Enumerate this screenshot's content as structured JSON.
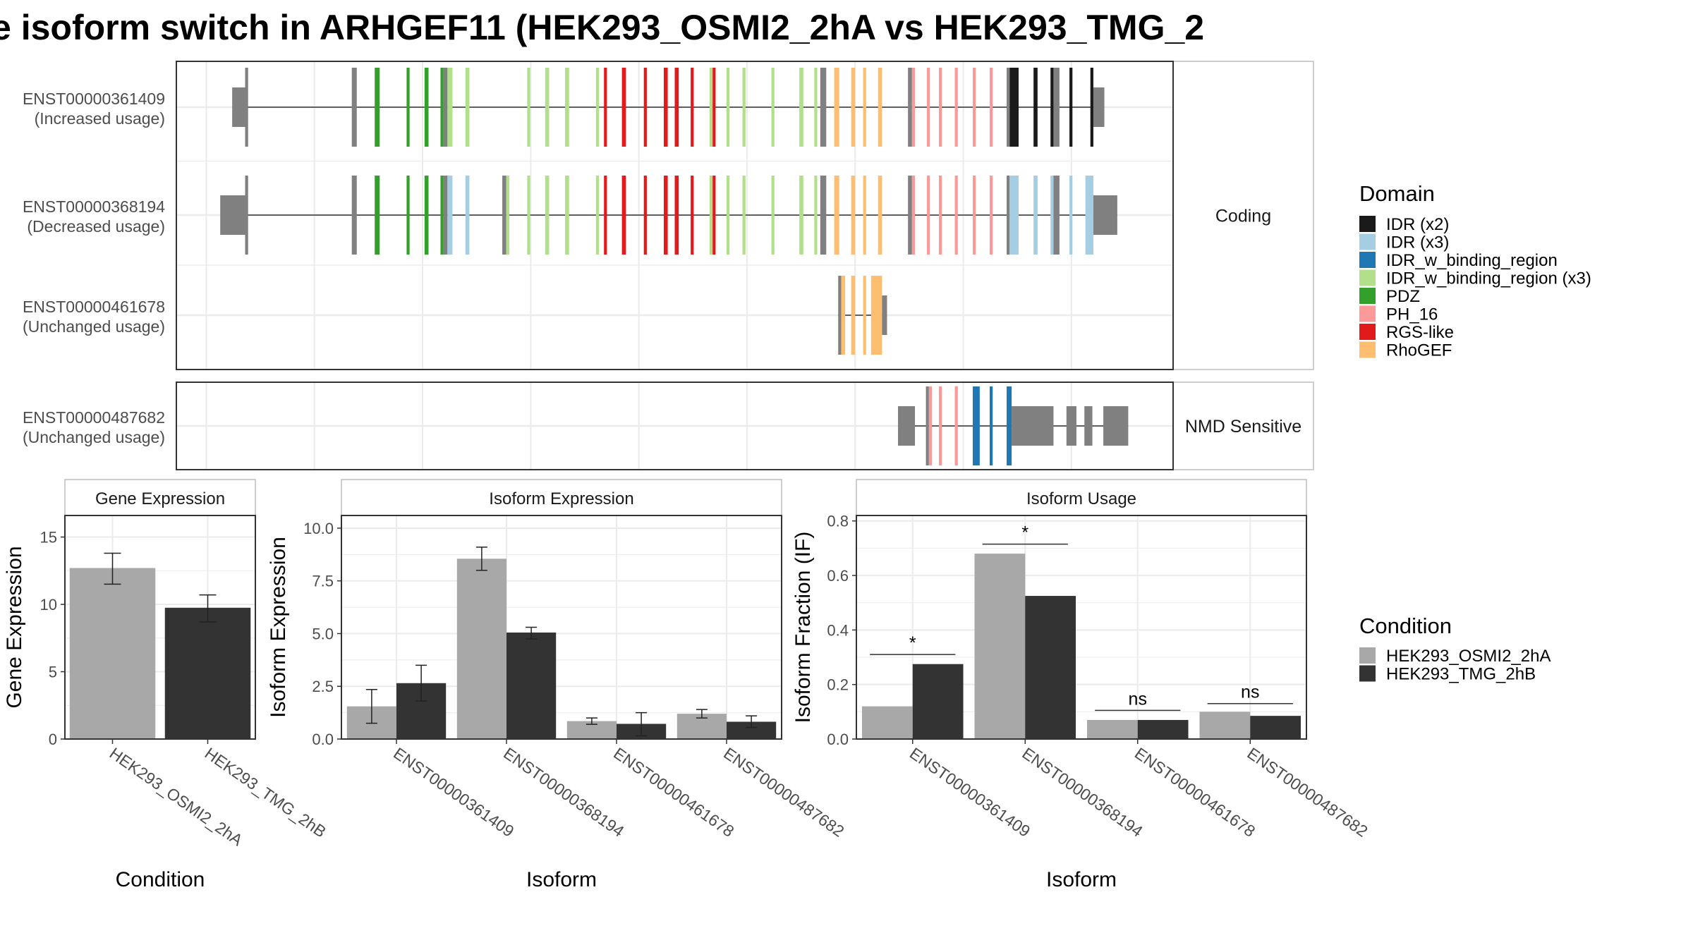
{
  "title": "e isoform switch in ARHGEF11 (HEK293_OSMI2_2hA vs HEK293_TMG_2",
  "colors": {
    "cond_a": "#a8a8a8",
    "cond_b": "#333333",
    "noncoding": "#808080",
    "domains": {
      "IDR (x2)": "#1a1a1a",
      "IDR (x3)": "#a6cee3",
      "IDR_w_binding_region": "#1f78b4",
      "IDR_w_binding_region (x3)": "#b2df8a",
      "PDZ": "#33a02c",
      "PH_16": "#fb9a99",
      "RGS-like": "#e31a1c",
      "RhoGEF": "#fdbf6f"
    }
  },
  "structure": {
    "panels": [
      {
        "strip": "Coding",
        "isoforms": [
          {
            "id": "ENST00000361409",
            "usage": "(Increased usage)"
          },
          {
            "id": "ENST00000368194",
            "usage": "(Decreased usage)"
          },
          {
            "id": "ENST00000461678",
            "usage": "(Unchanged usage)"
          }
        ]
      },
      {
        "strip": "NMD Sensitive",
        "isoforms": [
          {
            "id": "ENST00000487682",
            "usage": "(Unchanged usage)"
          }
        ]
      }
    ],
    "exons": {
      "ENST00000361409": [
        [
          0.056,
          0.069,
          "utr"
        ],
        [
          0.069,
          0.072,
          "nc"
        ],
        [
          0.176,
          0.181,
          "nc"
        ],
        [
          0.199,
          0.204,
          "PDZ"
        ],
        [
          0.231,
          0.234,
          "PDZ"
        ],
        [
          0.249,
          0.253,
          "PDZ"
        ],
        [
          0.265,
          0.268,
          "PDZ"
        ],
        [
          0.268,
          0.272,
          "nc"
        ],
        [
          0.272,
          0.277,
          "IDR_w_binding_region (x3)"
        ],
        [
          0.29,
          0.294,
          "IDR_w_binding_region (x3)"
        ],
        [
          0.352,
          0.355,
          "IDR_w_binding_region (x3)"
        ],
        [
          0.37,
          0.374,
          "IDR_w_binding_region (x3)"
        ],
        [
          0.39,
          0.394,
          "IDR_w_binding_region (x3)"
        ],
        [
          0.421,
          0.424,
          "IDR_w_binding_region (x3)"
        ],
        [
          0.429,
          0.432,
          "RGS-like"
        ],
        [
          0.447,
          0.451,
          "RGS-like"
        ],
        [
          0.469,
          0.472,
          "RGS-like"
        ],
        [
          0.489,
          0.493,
          "RGS-like"
        ],
        [
          0.5,
          0.504,
          "RGS-like"
        ],
        [
          0.516,
          0.519,
          "RGS-like"
        ],
        [
          0.535,
          0.538,
          "IDR_w_binding_region (x3)"
        ],
        [
          0.538,
          0.541,
          "RGS-like"
        ],
        [
          0.552,
          0.555,
          "IDR_w_binding_region (x3)"
        ],
        [
          0.568,
          0.571,
          "IDR_w_binding_region (x3)"
        ],
        [
          0.597,
          0.6,
          "IDR_w_binding_region (x3)"
        ],
        [
          0.625,
          0.629,
          "IDR_w_binding_region (x3)"
        ],
        [
          0.64,
          0.643,
          "IDR_w_binding_region (x3)"
        ],
        [
          0.646,
          0.652,
          "nc"
        ],
        [
          0.66,
          0.665,
          "RhoGEF"
        ],
        [
          0.677,
          0.681,
          "RhoGEF"
        ],
        [
          0.689,
          0.692,
          "RhoGEF"
        ],
        [
          0.704,
          0.708,
          "RhoGEF"
        ],
        [
          0.734,
          0.738,
          "nc"
        ],
        [
          0.738,
          0.741,
          "PH_16"
        ],
        [
          0.753,
          0.756,
          "PH_16"
        ],
        [
          0.765,
          0.768,
          "PH_16"
        ],
        [
          0.781,
          0.784,
          "PH_16"
        ],
        [
          0.799,
          0.802,
          "PH_16"
        ],
        [
          0.816,
          0.819,
          "PH_16"
        ],
        [
          0.833,
          0.836,
          "nc"
        ],
        [
          0.836,
          0.845,
          "IDR (x2)"
        ],
        [
          0.86,
          0.864,
          "IDR (x2)"
        ],
        [
          0.877,
          0.88,
          "IDR (x2)"
        ],
        [
          0.88,
          0.886,
          "nc"
        ],
        [
          0.896,
          0.899,
          "IDR (x2)"
        ],
        [
          0.917,
          0.92,
          "IDR (x2)"
        ],
        [
          0.92,
          0.931,
          "utr"
        ]
      ],
      "ENST00000368194": [
        [
          0.044,
          0.069,
          "utr"
        ],
        [
          0.069,
          0.072,
          "nc"
        ],
        [
          0.176,
          0.181,
          "nc"
        ],
        [
          0.199,
          0.204,
          "PDZ"
        ],
        [
          0.231,
          0.234,
          "PDZ"
        ],
        [
          0.249,
          0.253,
          "PDZ"
        ],
        [
          0.265,
          0.268,
          "PDZ"
        ],
        [
          0.268,
          0.272,
          "nc"
        ],
        [
          0.272,
          0.277,
          "IDR (x3)"
        ],
        [
          0.29,
          0.294,
          "IDR (x3)"
        ],
        [
          0.327,
          0.331,
          "nc"
        ],
        [
          0.331,
          0.334,
          "IDR_w_binding_region (x3)"
        ],
        [
          0.352,
          0.355,
          "IDR_w_binding_region (x3)"
        ],
        [
          0.37,
          0.374,
          "IDR_w_binding_region (x3)"
        ],
        [
          0.39,
          0.394,
          "IDR_w_binding_region (x3)"
        ],
        [
          0.421,
          0.424,
          "IDR_w_binding_region (x3)"
        ],
        [
          0.429,
          0.432,
          "RGS-like"
        ],
        [
          0.447,
          0.451,
          "RGS-like"
        ],
        [
          0.469,
          0.472,
          "RGS-like"
        ],
        [
          0.489,
          0.493,
          "RGS-like"
        ],
        [
          0.5,
          0.504,
          "RGS-like"
        ],
        [
          0.516,
          0.519,
          "RGS-like"
        ],
        [
          0.535,
          0.538,
          "IDR_w_binding_region (x3)"
        ],
        [
          0.538,
          0.541,
          "RGS-like"
        ],
        [
          0.552,
          0.555,
          "IDR_w_binding_region (x3)"
        ],
        [
          0.568,
          0.571,
          "IDR_w_binding_region (x3)"
        ],
        [
          0.597,
          0.6,
          "IDR_w_binding_region (x3)"
        ],
        [
          0.625,
          0.629,
          "IDR_w_binding_region (x3)"
        ],
        [
          0.64,
          0.643,
          "IDR_w_binding_region (x3)"
        ],
        [
          0.646,
          0.652,
          "nc"
        ],
        [
          0.66,
          0.665,
          "RhoGEF"
        ],
        [
          0.677,
          0.681,
          "RhoGEF"
        ],
        [
          0.689,
          0.692,
          "RhoGEF"
        ],
        [
          0.704,
          0.708,
          "RhoGEF"
        ],
        [
          0.734,
          0.738,
          "nc"
        ],
        [
          0.738,
          0.741,
          "PH_16"
        ],
        [
          0.753,
          0.756,
          "PH_16"
        ],
        [
          0.765,
          0.768,
          "PH_16"
        ],
        [
          0.781,
          0.784,
          "PH_16"
        ],
        [
          0.799,
          0.802,
          "PH_16"
        ],
        [
          0.816,
          0.819,
          "PH_16"
        ],
        [
          0.833,
          0.836,
          "nc"
        ],
        [
          0.836,
          0.845,
          "IDR (x3)"
        ],
        [
          0.86,
          0.864,
          "IDR (x3)"
        ],
        [
          0.877,
          0.88,
          "IDR (x3)"
        ],
        [
          0.88,
          0.886,
          "nc"
        ],
        [
          0.896,
          0.899,
          "IDR (x3)"
        ],
        [
          0.912,
          0.92,
          "IDR (x3)"
        ],
        [
          0.92,
          0.944,
          "utr"
        ]
      ],
      "ENST00000461678": [
        [
          0.664,
          0.667,
          "nc"
        ],
        [
          0.667,
          0.671,
          "RhoGEF"
        ],
        [
          0.677,
          0.681,
          "RhoGEF"
        ],
        [
          0.689,
          0.692,
          "RhoGEF"
        ],
        [
          0.697,
          0.708,
          "RhoGEF"
        ],
        [
          0.708,
          0.713,
          "utr"
        ]
      ],
      "ENST00000487682": [
        [
          0.724,
          0.741,
          "utr"
        ],
        [
          0.752,
          0.755,
          "nc"
        ],
        [
          0.755,
          0.758,
          "PH_16"
        ],
        [
          0.765,
          0.768,
          "PH_16"
        ],
        [
          0.781,
          0.784,
          "PH_16"
        ],
        [
          0.799,
          0.806,
          "IDR_w_binding_region"
        ],
        [
          0.816,
          0.819,
          "IDR_w_binding_region"
        ],
        [
          0.833,
          0.838,
          "IDR_w_binding_region"
        ],
        [
          0.838,
          0.88,
          "utr"
        ],
        [
          0.893,
          0.903,
          "utr"
        ],
        [
          0.911,
          0.919,
          "utr"
        ],
        [
          0.93,
          0.955,
          "utr"
        ]
      ]
    },
    "introns": {
      "ENST00000361409": [
        0.069,
        0.931
      ],
      "ENST00000368194": [
        0.069,
        0.944
      ],
      "ENST00000461678": [
        0.664,
        0.713
      ],
      "ENST00000487682": [
        0.724,
        0.955
      ]
    }
  },
  "legend_domain": {
    "title": "Domain",
    "entries": [
      "IDR (x2)",
      "IDR (x3)",
      "IDR_w_binding_region",
      "IDR_w_binding_region (x3)",
      "PDZ",
      "PH_16",
      "RGS-like",
      "RhoGEF"
    ]
  },
  "legend_condition": {
    "title": "Condition",
    "entries": [
      "HEK293_OSMI2_2hA",
      "HEK293_TMG_2hB"
    ]
  },
  "chart_data": [
    {
      "type": "bar",
      "title": "Gene Expression",
      "xlabel": "Condition",
      "ylabel": "Gene Expression",
      "ylim": [
        0,
        16.6
      ],
      "yticks": [
        0,
        5,
        10,
        15
      ],
      "categories": [
        "HEK293_OSMI2_2hA",
        "HEK293_TMG_2hB"
      ],
      "values": [
        12.7,
        9.75
      ],
      "errors": [
        [
          11.5,
          13.8
        ],
        [
          8.7,
          10.7
        ]
      ]
    },
    {
      "type": "bar",
      "title": "Isoform Expression",
      "xlabel": "Isoform",
      "ylabel": "Isoform Expression",
      "ylim": [
        0,
        10.6
      ],
      "yticks": [
        0.0,
        2.5,
        5.0,
        7.5,
        10.0
      ],
      "ytick_labels": [
        "0.0",
        "2.5",
        "5.0",
        "7.5",
        "10.0"
      ],
      "categories": [
        "ENST00000361409",
        "ENST00000368194",
        "ENST00000461678",
        "ENST00000487682"
      ],
      "series": [
        {
          "name": "HEK293_OSMI2_2hA",
          "values": [
            1.55,
            8.55,
            0.85,
            1.2
          ],
          "errors": [
            [
              0.75,
              2.35
            ],
            [
              8.0,
              9.1
            ],
            [
              0.7,
              1.0
            ],
            [
              1.0,
              1.4
            ]
          ]
        },
        {
          "name": "HEK293_TMG_2hB",
          "values": [
            2.65,
            5.05,
            0.72,
            0.82
          ],
          "errors": [
            [
              1.8,
              3.5
            ],
            [
              4.75,
              5.3
            ],
            [
              0.15,
              1.25
            ],
            [
              0.55,
              1.1
            ]
          ]
        }
      ]
    },
    {
      "type": "bar",
      "title": "Isoform Usage",
      "xlabel": "Isoform",
      "ylabel": "Isoform Fraction (IF)",
      "ylim": [
        0,
        0.82
      ],
      "yticks": [
        0.0,
        0.2,
        0.4,
        0.6,
        0.8
      ],
      "ytick_labels": [
        "0.0",
        "0.2",
        "0.4",
        "0.6",
        "0.8"
      ],
      "categories": [
        "ENST00000361409",
        "ENST00000368194",
        "ENST00000461678",
        "ENST00000487682"
      ],
      "series": [
        {
          "name": "HEK293_OSMI2_2hA",
          "values": [
            0.12,
            0.68,
            0.07,
            0.1
          ]
        },
        {
          "name": "HEK293_TMG_2hB",
          "values": [
            0.275,
            0.525,
            0.07,
            0.085
          ]
        }
      ],
      "significance": [
        {
          "label": "*",
          "y": 0.31
        },
        {
          "label": "*",
          "y": 0.715
        },
        {
          "label": "ns",
          "y": 0.105
        },
        {
          "label": "ns",
          "y": 0.13
        }
      ]
    }
  ]
}
